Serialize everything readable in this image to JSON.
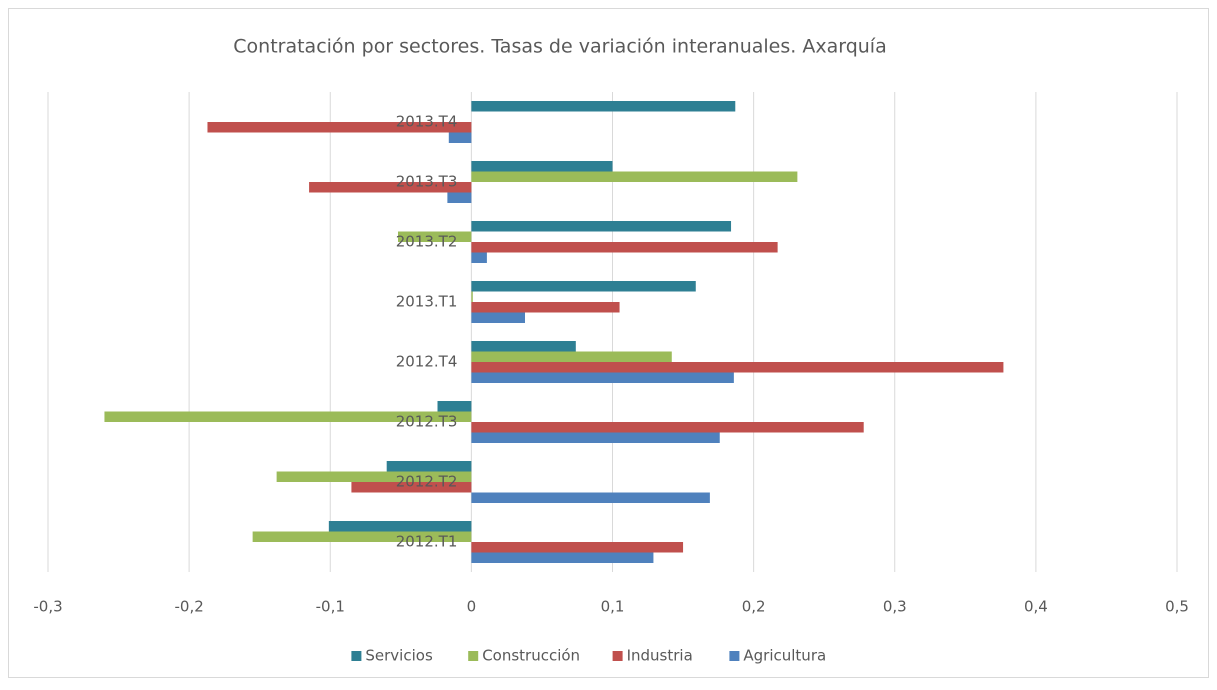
{
  "chart_data": {
    "type": "hbar",
    "title": "Contratación por sectores. Tasas de variación interanuales. Axarquía",
    "categories": [
      "2012.T1",
      "2012.T2",
      "2012.T3",
      "2012.T4",
      "2013.T1",
      "2013.T2",
      "2013.T3",
      "2013.T4"
    ],
    "series": [
      {
        "name": "Servicios",
        "color": "#2e7f93",
        "values": [
          -0.101,
          -0.06,
          -0.024,
          0.074,
          0.159,
          0.184,
          0.1,
          0.187
        ]
      },
      {
        "name": "Construcción",
        "color": "#9bbb59",
        "values": [
          -0.155,
          -0.138,
          -0.26,
          0.142,
          0.001,
          -0.052,
          0.231,
          0
        ]
      },
      {
        "name": "Industria",
        "color": "#c0504d",
        "values": [
          0.15,
          -0.085,
          0.278,
          0.377,
          0.105,
          0.217,
          -0.115,
          -0.187
        ]
      },
      {
        "name": "Agricultura",
        "color": "#4f81bd",
        "values": [
          0.129,
          0.169,
          0.176,
          0.186,
          0.038,
          0.011,
          -0.017,
          -0.016
        ]
      }
    ],
    "xlim": [
      -0.3,
      0.5
    ],
    "xticks": [
      {
        "value": -0.3,
        "label": "-0,3"
      },
      {
        "value": -0.2,
        "label": "-0,2"
      },
      {
        "value": -0.1,
        "label": "-0,1"
      },
      0,
      {
        "value": 0.1,
        "label": "0,1"
      },
      {
        "value": 0.2,
        "label": "0,2"
      },
      {
        "value": 0.3,
        "label": "0,3"
      },
      {
        "value": 0.4,
        "label": "0,4"
      },
      {
        "value": 0.5,
        "label": "0,5"
      }
    ],
    "grid": true,
    "legend": "bottom"
  }
}
